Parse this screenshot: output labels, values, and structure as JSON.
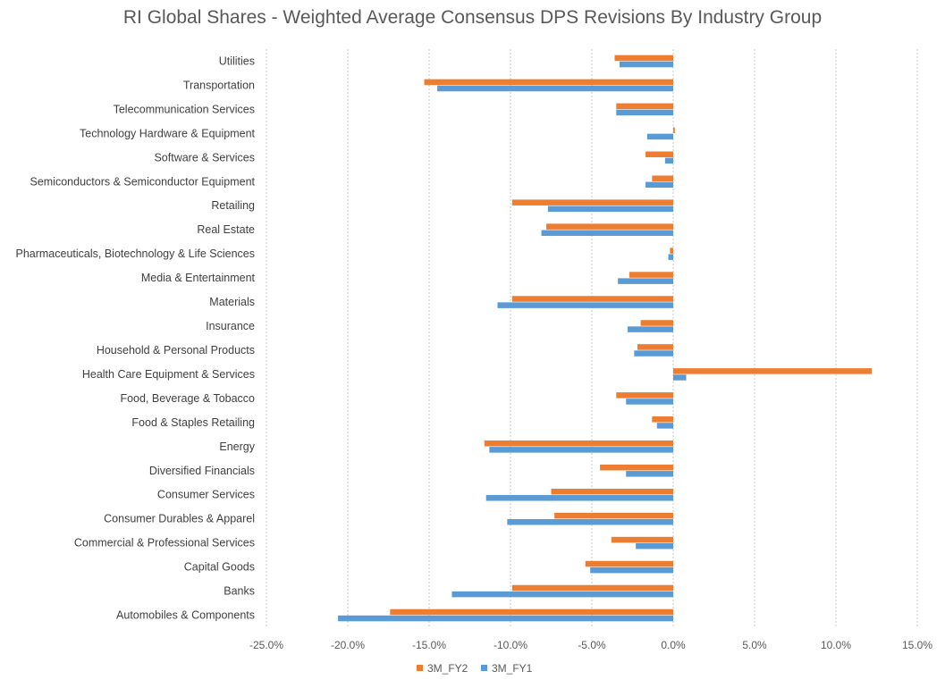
{
  "chart_data": {
    "type": "bar",
    "orientation": "horizontal",
    "title": "RI Global Shares - Weighted Average Consensus DPS Revisions By Industry Group",
    "categories": [
      "Utilities",
      "Transportation",
      "Telecommunication Services",
      "Technology Hardware & Equipment",
      "Software & Services",
      "Semiconductors & Semiconductor Equipment",
      "Retailing",
      "Real Estate",
      "Pharmaceuticals, Biotechnology & Life Sciences",
      "Media & Entertainment",
      "Materials",
      "Insurance",
      "Household & Personal Products",
      "Health Care Equipment & Services",
      "Food, Beverage & Tobacco",
      "Food & Staples Retailing",
      "Energy",
      "Diversified Financials",
      "Consumer Services",
      "Consumer Durables & Apparel",
      "Commercial & Professional Services",
      "Capital Goods",
      "Banks",
      "Automobiles & Components"
    ],
    "series": [
      {
        "name": "3M_FY2",
        "color": "#ED7D31",
        "values": [
          -3.6,
          -15.3,
          -3.5,
          0.1,
          -1.7,
          -1.3,
          -9.9,
          -7.8,
          -0.2,
          -2.7,
          -9.9,
          -2.0,
          -2.2,
          12.2,
          -3.5,
          -1.3,
          -11.6,
          -4.5,
          -7.5,
          -7.3,
          -3.8,
          -5.4,
          -9.9,
          -17.4
        ]
      },
      {
        "name": "3M_FY1",
        "color": "#5B9BD5",
        "values": [
          -3.3,
          -14.5,
          -3.5,
          -1.6,
          -0.5,
          -1.7,
          -7.7,
          -8.1,
          -0.3,
          -3.4,
          -10.8,
          -2.8,
          -2.4,
          0.8,
          -2.9,
          -1.0,
          -11.3,
          -2.9,
          -11.5,
          -10.2,
          -2.3,
          -5.1,
          -13.6,
          -20.6
        ]
      }
    ],
    "xlim": [
      -25,
      15
    ],
    "xticks": [
      "-25.0%",
      "-20.0%",
      "-15.0%",
      "-10.0%",
      "-5.0%",
      "0.0%",
      "5.0%",
      "10.0%",
      "15.0%"
    ],
    "grid": "vertical",
    "legend_position": "bottom",
    "xlabel": "",
    "ylabel": ""
  }
}
